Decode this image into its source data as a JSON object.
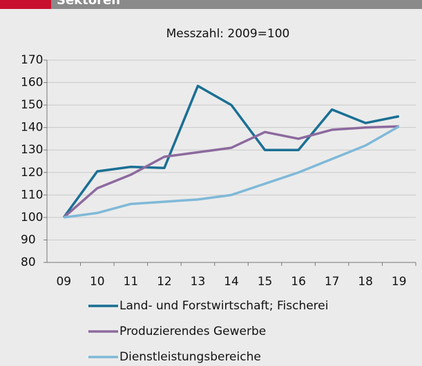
{
  "chart_data": {
    "type": "line",
    "title": "Sektoren",
    "subtitle": "Messzahl: 2009=100",
    "categories": [
      "09",
      "10",
      "11",
      "12",
      "13",
      "14",
      "15",
      "16",
      "17",
      "18",
      "19"
    ],
    "series": [
      {
        "name": "Land- und Forstwirtschaft; Fischerei",
        "color": "#1a6f94",
        "values": [
          100,
          120.5,
          122.5,
          122,
          158.5,
          150,
          130,
          130,
          148,
          142,
          145
        ]
      },
      {
        "name": "Produzierendes Gewerbe",
        "color": "#8c6a9e",
        "values": [
          100,
          113,
          119,
          127,
          129,
          131,
          138,
          135,
          139,
          140,
          140.5
        ]
      },
      {
        "name": "Dienstleistungsbereiche",
        "color": "#7fb9d8",
        "values": [
          100,
          102,
          106,
          107,
          108,
          110,
          115,
          120,
          126,
          132,
          140.5
        ]
      }
    ],
    "ylim": [
      80,
      170
    ],
    "yticks": [
      80,
      90,
      100,
      110,
      120,
      130,
      140,
      150,
      160,
      170
    ],
    "grid": true
  }
}
